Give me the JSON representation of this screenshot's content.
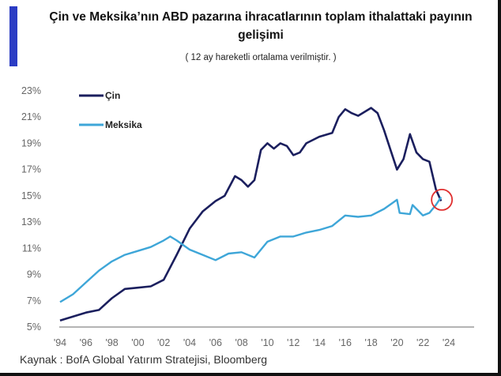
{
  "title": "Çin ve Meksika’nın ABD pazarına ihracatlarının toplam ithalattaki payının gelişimi",
  "subtitle": "( 12 ay hareketli ortalama verilmiştir. )",
  "source": "Kaynak :  BofA Global Yatırım Stratejisi, Bloomberg",
  "chart_data": {
    "type": "line",
    "title": "Çin ve Meksika’nın ABD pazarına ihracatlarının toplam ithalattaki payının gelişimi",
    "xlabel": "",
    "ylabel": "",
    "xlim": [
      1994,
      2024
    ],
    "ylim": [
      5,
      23
    ],
    "x_ticks": [
      "'94",
      "'96",
      "'98",
      "'00",
      "'02",
      "'04",
      "'06",
      "'08",
      "'10",
      "'12",
      "'14",
      "'16",
      "'18",
      "'20",
      "'22",
      "'24"
    ],
    "y_ticks": [
      "23%",
      "21%",
      "19%",
      "17%",
      "15%",
      "13%",
      "11%",
      "9%",
      "7%",
      "5%"
    ],
    "grid": false,
    "legend": "top-left",
    "highlight": {
      "x": 2023.4,
      "y": 14.7,
      "shape": "circle",
      "color": "#e03030"
    },
    "series": [
      {
        "name": "Çin",
        "color": "#1b1f5e",
        "x": [
          1994,
          1995,
          1996,
          1997,
          1998,
          1999,
          2000,
          2001,
          2002,
          2003,
          2004,
          2005,
          2006,
          2006.7,
          2007.5,
          2008,
          2008.5,
          2009,
          2009.5,
          2010,
          2010.5,
          2011,
          2011.5,
          2012,
          2012.5,
          2013,
          2014,
          2015,
          2015.5,
          2016,
          2016.5,
          2017,
          2017.5,
          2018,
          2018.5,
          2019,
          2019.5,
          2020,
          2020.5,
          2021,
          2021.5,
          2022,
          2022.5,
          2023,
          2023.4
        ],
        "y": [
          5.5,
          5.8,
          6.1,
          6.3,
          7.2,
          7.9,
          8.0,
          8.1,
          8.6,
          10.5,
          12.5,
          13.8,
          14.6,
          15.0,
          16.5,
          16.2,
          15.7,
          16.2,
          18.5,
          19.0,
          18.6,
          19.0,
          18.8,
          18.1,
          18.3,
          19.0,
          19.5,
          19.8,
          21.0,
          21.6,
          21.3,
          21.1,
          21.4,
          21.7,
          21.3,
          20.0,
          18.5,
          17.0,
          17.8,
          19.7,
          18.3,
          17.8,
          17.6,
          15.5,
          14.6
        ]
      },
      {
        "name": "Meksika",
        "color": "#3ea6d8",
        "x": [
          1994,
          1995,
          1996,
          1997,
          1998,
          1999,
          2000,
          2001,
          2002,
          2002.5,
          2003,
          2004,
          2005,
          2006,
          2007,
          2008,
          2009,
          2010,
          2011,
          2012,
          2013,
          2014,
          2015,
          2016,
          2017,
          2018,
          2019,
          2020,
          2020.2,
          2021,
          2021.2,
          2022,
          2022.5,
          2023,
          2023.4
        ],
        "y": [
          6.9,
          7.5,
          8.4,
          9.3,
          10.0,
          10.5,
          10.8,
          11.1,
          11.6,
          11.9,
          11.6,
          10.9,
          10.5,
          10.1,
          10.6,
          10.7,
          10.3,
          11.5,
          11.9,
          11.9,
          12.2,
          12.4,
          12.7,
          13.5,
          13.4,
          13.5,
          14.0,
          14.7,
          13.7,
          13.6,
          14.3,
          13.5,
          13.7,
          14.3,
          14.9
        ]
      }
    ]
  }
}
